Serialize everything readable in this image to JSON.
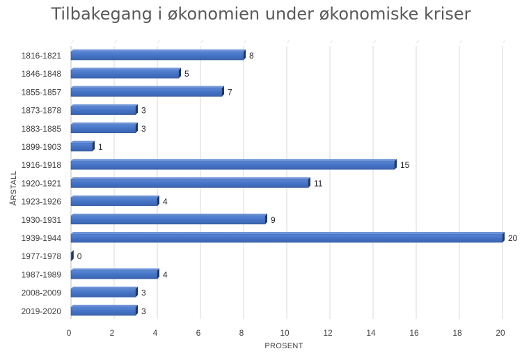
{
  "chart_data": {
    "type": "bar",
    "orientation": "horizontal",
    "title": "Tilbakegang i økonomien under økonomiske kriser",
    "xlabel": "PROSENT",
    "ylabel": "ÅRSTALL",
    "categories": [
      "1816-1821",
      "1846-1848",
      "1855-1857",
      "1873-1878",
      "1883-1885",
      "1899-1903",
      "1916-1918",
      "1920-1921",
      "1923-1926",
      "1930-1931",
      "1939-1944",
      "1977-1978",
      "1987-1989",
      "2008-2009",
      "2019-2020"
    ],
    "values": [
      8,
      5,
      7,
      3,
      3,
      1,
      15,
      11,
      4,
      9,
      20,
      0,
      4,
      3,
      3
    ],
    "xlim": [
      0,
      20
    ],
    "xticks": [
      0,
      2,
      4,
      6,
      8,
      10,
      12,
      14,
      16,
      18,
      20
    ],
    "grid": true,
    "legend": "none",
    "bar_color": "#4472C4"
  }
}
